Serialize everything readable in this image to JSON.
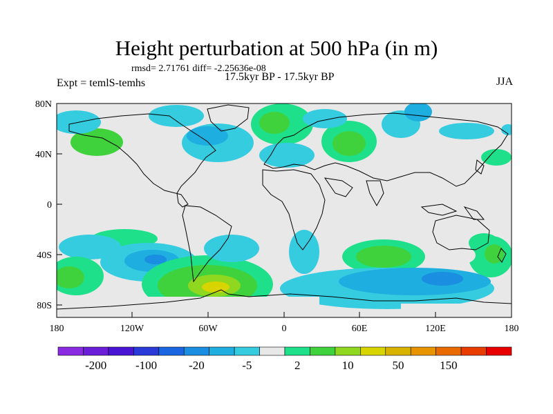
{
  "title": "Height perturbation at 500 hPa (in m)",
  "stats": "rmsd= 2.71761 diff= -2.25636e-08",
  "left_string": "Expt = temlS-temhs",
  "center_string": "17.5kyr BP - 17.5kyr BP",
  "right_string": "JJA",
  "lat_labels": [
    "80N",
    "40N",
    "0",
    "40S",
    "80S"
  ],
  "lon_labels": [
    "180",
    "120W",
    "60W",
    "0",
    "60E",
    "120E",
    "180"
  ],
  "colorbar": {
    "colors": [
      "#8a2be2",
      "#6a1ed8",
      "#4a14d4",
      "#2a3ad8",
      "#1a66e0",
      "#1a8ee0",
      "#1eaee0",
      "#36cce0",
      "#e8e8e8",
      "#1ee08a",
      "#40d23c",
      "#90d820",
      "#d8d400",
      "#d8b400",
      "#e89400",
      "#e86a00",
      "#e83c00",
      "#e80000"
    ],
    "labels": [
      "-200",
      "-100",
      "-20",
      "-5",
      "2",
      "10",
      "50",
      "150"
    ]
  },
  "contour_colors": {
    "ocean_bg": "#e8e8e8",
    "lightblue": "#36cce0",
    "midblue": "#1eaee0",
    "blue": "#1a8ee0",
    "deepblue": "#1a66e0",
    "teal": "#1ee08a",
    "green": "#40d23c",
    "yellowgreen": "#90d820",
    "yellow": "#d8d400"
  }
}
